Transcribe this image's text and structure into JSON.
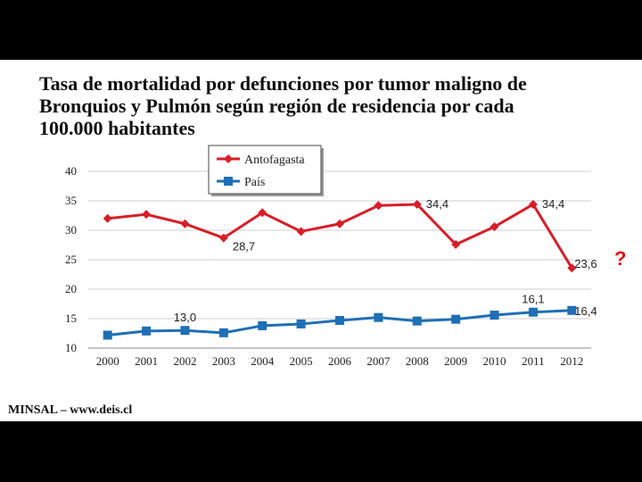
{
  "title": "Tasa de mortalidad por defunciones por tumor maligno de Bronquios y Pulmón según región de residencia por cada 100.000 habitantes",
  "source": "MINSAL – www.deis.cl",
  "annotation": "?",
  "chart_data": {
    "type": "line",
    "categories": [
      "2000",
      "2001",
      "2002",
      "2003",
      "2004",
      "2005",
      "2006",
      "2007",
      "2008",
      "2009",
      "2010",
      "2011",
      "2012"
    ],
    "ylim": [
      10,
      40
    ],
    "yticks": [
      10,
      15,
      20,
      25,
      30,
      35,
      40
    ],
    "grid": true,
    "legend": "top-left",
    "series": [
      {
        "name": "Antofagasta",
        "color": "#d81e28",
        "marker": "diamond",
        "values": [
          32.0,
          32.7,
          31.1,
          28.7,
          33.0,
          29.8,
          31.1,
          34.2,
          34.4,
          27.6,
          30.6,
          34.4,
          23.6
        ],
        "labels": [
          null,
          null,
          null,
          "28,7",
          null,
          null,
          null,
          null,
          "34,4",
          null,
          null,
          "34,4",
          "23,6"
        ]
      },
      {
        "name": "País",
        "color": "#1f6fb5",
        "marker": "square",
        "values": [
          12.2,
          12.9,
          13.0,
          12.6,
          13.8,
          14.1,
          14.7,
          15.2,
          14.6,
          14.9,
          15.6,
          16.1,
          16.4
        ],
        "labels": [
          null,
          null,
          "13,0",
          null,
          null,
          null,
          null,
          null,
          null,
          null,
          null,
          "16,1",
          "16,4"
        ]
      }
    ]
  }
}
